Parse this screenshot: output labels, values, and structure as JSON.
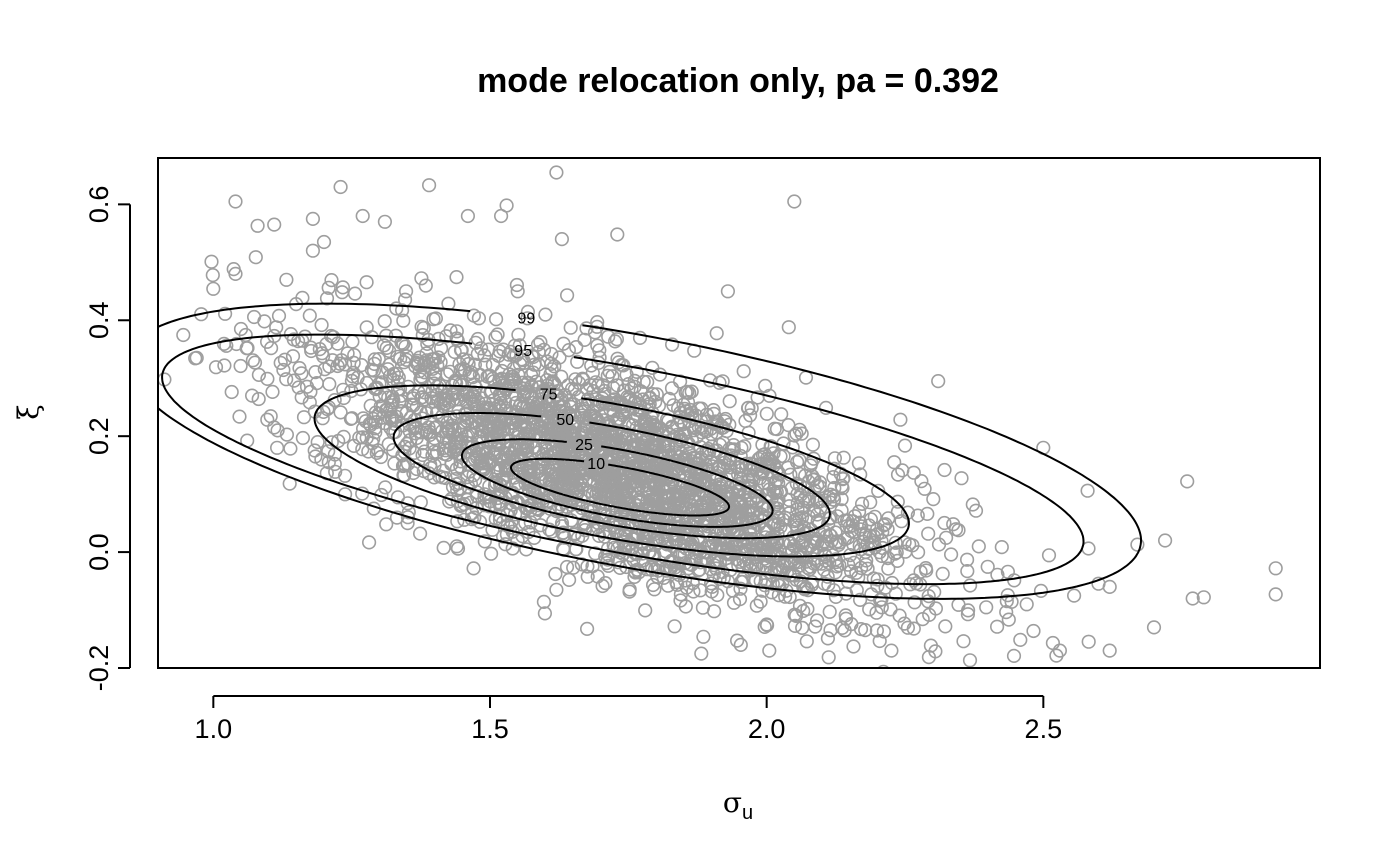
{
  "chart_data": {
    "type": "scatter",
    "title": "mode relocation only, pa =  0.392",
    "xlabel": "σ",
    "xlabel_subscript": "u",
    "ylabel": "ξ",
    "xlim": [
      0.9,
      3.0
    ],
    "ylim": [
      -0.2,
      0.68
    ],
    "x_ticks": [
      1.0,
      1.5,
      2.0,
      2.5
    ],
    "x_tick_labels": [
      "1.0",
      "1.5",
      "2.0",
      "2.5"
    ],
    "y_ticks": [
      -0.2,
      0.0,
      0.2,
      0.4,
      0.6
    ],
    "y_tick_labels": [
      "-0.2",
      "0.0",
      "0.2",
      "0.4",
      "0.6"
    ],
    "point_color": "#9e9e9e",
    "contour_color": "#000000",
    "scatter_summary": {
      "n_points": 3000,
      "center": [
        1.73,
        0.14
      ],
      "sd": [
        0.27,
        0.12
      ],
      "correlation": -0.68
    },
    "outliers": [
      [
        0.97,
        0.335
      ],
      [
        1.02,
        0.322
      ],
      [
        1.04,
        0.605
      ],
      [
        1.62,
        0.655
      ],
      [
        1.23,
        0.63
      ],
      [
        1.39,
        0.633
      ],
      [
        2.05,
        0.605
      ],
      [
        2.76,
        0.122
      ],
      [
        2.92,
        -0.028
      ],
      [
        2.92,
        -0.073
      ],
      [
        2.62,
        -0.17
      ],
      [
        2.53,
        -0.17
      ],
      [
        2.7,
        -0.13
      ],
      [
        2.72,
        0.02
      ],
      [
        2.67,
        0.013
      ],
      [
        2.58,
        0.106
      ],
      [
        2.5,
        0.18
      ],
      [
        2.31,
        0.295
      ],
      [
        1.93,
        0.45
      ],
      [
        2.04,
        0.388
      ],
      [
        1.05,
        0.385
      ],
      [
        1.04,
        0.48
      ],
      [
        1.08,
        0.563
      ],
      [
        1.11,
        0.565
      ],
      [
        1.18,
        0.575
      ],
      [
        1.27,
        0.58
      ],
      [
        1.53,
        0.598
      ],
      [
        1.46,
        0.58
      ],
      [
        1.63,
        0.54
      ],
      [
        1.73,
        0.548
      ],
      [
        1.52,
        0.58
      ],
      [
        1.18,
        0.52
      ],
      [
        1.2,
        0.535
      ],
      [
        1.31,
        0.57
      ],
      [
        1.55,
        0.45
      ],
      [
        1.07,
        0.27
      ],
      [
        1.11,
        0.215
      ],
      [
        1.29,
        0.075
      ],
      [
        1.44,
        0.01
      ],
      [
        1.62,
        -0.065
      ],
      [
        2.0,
        -0.125
      ],
      [
        2.47,
        -0.09
      ],
      [
        2.62,
        -0.06
      ],
      [
        2.77,
        -0.08
      ],
      [
        2.79,
        -0.078
      ]
    ],
    "contours": [
      {
        "level": "10",
        "cx": 1.735,
        "cy": 0.112,
        "a": 0.2,
        "b": 0.035,
        "angle_deg": -10
      },
      {
        "level": "25",
        "cx": 1.73,
        "cy": 0.119,
        "a": 0.285,
        "b": 0.058,
        "angle_deg": -10
      },
      {
        "level": "50",
        "cx": 1.72,
        "cy": 0.132,
        "a": 0.4,
        "b": 0.084,
        "angle_deg": -10
      },
      {
        "level": "75",
        "cx": 1.72,
        "cy": 0.14,
        "a": 0.545,
        "b": 0.115,
        "angle_deg": -10
      },
      {
        "level": "95",
        "cx": 1.74,
        "cy": 0.16,
        "a": 0.845,
        "b": 0.16,
        "angle_deg": -10
      },
      {
        "level": "99",
        "cx": 1.76,
        "cy": 0.174,
        "a": 0.93,
        "b": 0.2,
        "angle_deg": -10
      }
    ]
  }
}
